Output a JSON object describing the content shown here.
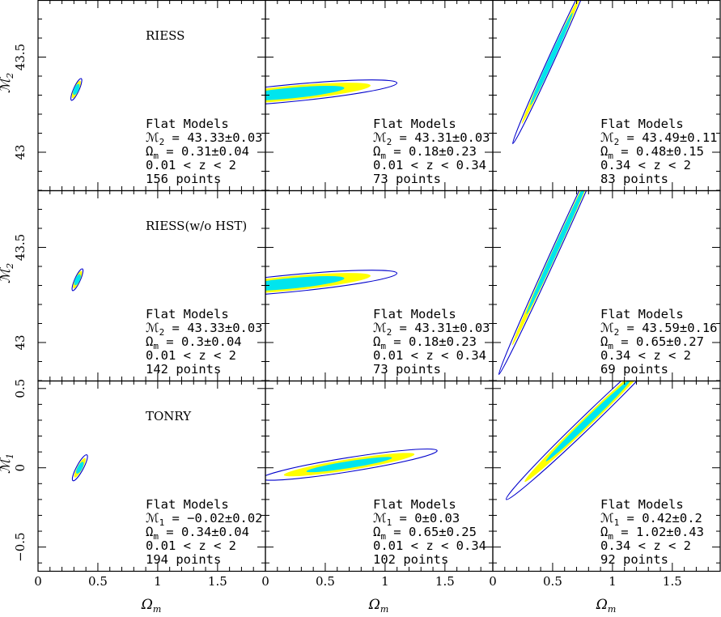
{
  "chart_data": {
    "type": "contour",
    "colors": {
      "inner": "#00e5ee",
      "middle": "#ffff00",
      "outer": "#0000cc"
    },
    "x_axis": {
      "label_main": "Ω",
      "label_sub": "m",
      "lim": [
        0,
        1.9
      ],
      "ticks": [
        0,
        0.5,
        1,
        1.5
      ],
      "tick_labels": [
        "0",
        "0.5",
        "1",
        "1.5"
      ]
    },
    "y_axes": [
      {
        "label_main": "ℳ",
        "label_sub": "2",
        "lim": [
          42.8,
          43.8
        ],
        "ticks": [
          43,
          43.5
        ],
        "tick_labels": [
          "43",
          "43.5"
        ]
      },
      {
        "label_main": "ℳ",
        "label_sub": "2",
        "lim": [
          42.8,
          43.8
        ],
        "ticks": [
          43,
          43.5
        ],
        "tick_labels": [
          "43",
          "43.5"
        ]
      },
      {
        "label_main": "ℳ",
        "label_sub": "1",
        "lim": [
          -0.65,
          0.55
        ],
        "ticks": [
          -0.5,
          0,
          0.5
        ],
        "tick_labels": [
          "−0.5",
          "0",
          "0.5"
        ]
      }
    ],
    "row_labels": [
      "RIESS",
      "RIESS(w/o HST)",
      "TONRY"
    ],
    "panels": [
      {
        "row": 0,
        "col": 0,
        "title": "Flat Models",
        "m_prefix": "ℳ",
        "m_sub": "2",
        "m_rest": " = 43.33±0.03",
        "om_prefix": "Ω",
        "om_sub": "m",
        "om_rest": " = 0.31±0.04",
        "zrange": "0.01 < z < 2",
        "npoints": "156 points",
        "ellipse": {
          "cx": 0.32,
          "cy": 43.33,
          "axes": [
            [
              0.07,
              0.035
            ],
            [
              0.056,
              0.028
            ],
            [
              0.035,
              0.018
            ]
          ],
          "angle_dir": [
            0.1,
            0.14
          ]
        }
      },
      {
        "row": 0,
        "col": 1,
        "title": "Flat Models",
        "m_prefix": "ℳ",
        "m_sub": "2",
        "m_rest": " = 43.31±0.03",
        "om_prefix": "Ω",
        "om_sub": "m",
        "om_rest": " = 0.18±0.23",
        "zrange": "0.01 < z < 0.34",
        "npoints": "73 points",
        "ellipse": {
          "cx": 0.2,
          "cy": 43.31,
          "axes": [
            [
              0.9,
              0.045
            ],
            [
              0.68,
              0.038
            ],
            [
              0.46,
              0.028
            ]
          ],
          "angle_dir": [
            1,
            0.06
          ]
        }
      },
      {
        "row": 0,
        "col": 2,
        "title": "Flat Models",
        "m_prefix": "ℳ",
        "m_sub": "2",
        "m_rest": " = 43.49±0.11",
        "om_prefix": "Ω",
        "om_sub": "m",
        "om_rest": " = 0.48±0.15",
        "zrange": "0.34 < z < 2",
        "npoints": "83 points",
        "ellipse": {
          "cx": 0.49,
          "cy": 43.49,
          "axes": [
            [
              0.55,
              0.04
            ],
            [
              0.42,
              0.03
            ],
            [
              0.3,
              0.02
            ]
          ],
          "angle_dir": [
            0.45,
            0.62
          ]
        }
      },
      {
        "row": 1,
        "col": 0,
        "title": "Flat Models",
        "m_prefix": "ℳ",
        "m_sub": "2",
        "m_rest": " = 43.33±0.03",
        "om_prefix": "Ω",
        "om_sub": "m",
        "om_rest": " = 0.3±0.04",
        "zrange": "0.01 < z < 2",
        "npoints": "142 points",
        "ellipse": {
          "cx": 0.33,
          "cy": 43.33,
          "axes": [
            [
              0.07,
              0.035
            ],
            [
              0.056,
              0.028
            ],
            [
              0.035,
              0.018
            ]
          ],
          "angle_dir": [
            0.1,
            0.14
          ]
        }
      },
      {
        "row": 1,
        "col": 1,
        "title": "Flat Models",
        "m_prefix": "ℳ",
        "m_sub": "2",
        "m_rest": " = 43.31±0.03",
        "om_prefix": "Ω",
        "om_sub": "m",
        "om_rest": " = 0.18±0.23",
        "zrange": "0.01 < z < 0.34",
        "npoints": "73 points",
        "ellipse": {
          "cx": 0.2,
          "cy": 43.31,
          "axes": [
            [
              0.9,
              0.045
            ],
            [
              0.68,
              0.038
            ],
            [
              0.46,
              0.028
            ]
          ],
          "angle_dir": [
            1,
            0.06
          ]
        }
      },
      {
        "row": 1,
        "col": 2,
        "title": "Flat Models",
        "m_prefix": "ℳ",
        "m_sub": "2",
        "m_rest": " = 43.59±0.16",
        "om_prefix": "Ω",
        "om_sub": "m",
        "om_rest": " = 0.65±0.27",
        "zrange": "0.34 < z < 2",
        "npoints": "69 points",
        "ellipse": {
          "cx": 0.55,
          "cy": 43.52,
          "axes": [
            [
              0.85,
              0.045
            ],
            [
              0.66,
              0.035
            ],
            [
              0.46,
              0.025
            ]
          ],
          "angle_dir": [
            0.45,
            0.62
          ]
        }
      },
      {
        "row": 2,
        "col": 0,
        "title": "Flat Models",
        "m_prefix": "ℳ",
        "m_sub": "1",
        "m_rest": " = −0.02±0.02",
        "om_prefix": "Ω",
        "om_sub": "m",
        "om_rest": " = 0.34±0.04",
        "zrange": "0.01 < z < 2",
        "npoints": "194 points",
        "ellipse": {
          "cx": 0.35,
          "cy": 0.0,
          "axes": [
            [
              0.1,
              0.045
            ],
            [
              0.075,
              0.035
            ],
            [
              0.045,
              0.022
            ]
          ],
          "angle_dir": [
            0.1,
            0.14
          ]
        }
      },
      {
        "row": 2,
        "col": 1,
        "title": "Flat Models",
        "m_prefix": "ℳ",
        "m_sub": "1",
        "m_rest": " = 0±0.03",
        "om_prefix": "Ω",
        "om_sub": "m",
        "om_rest": " = 0.65±0.25",
        "zrange": "0.01 < z < 0.34",
        "npoints": "102 points",
        "ellipse": {
          "cx": 0.7,
          "cy": 0.02,
          "axes": [
            [
              0.74,
              0.045
            ],
            [
              0.55,
              0.035
            ],
            [
              0.36,
              0.022
            ]
          ],
          "angle_dir": [
            1,
            0.12
          ]
        }
      },
      {
        "row": 2,
        "col": 2,
        "title": "Flat Models",
        "m_prefix": "ℳ",
        "m_sub": "1",
        "m_rest": " = 0.42±0.2",
        "om_prefix": "Ω",
        "om_sub": "m",
        "om_rest": " = 1.02±0.43",
        "zrange": "0.34 < z < 2",
        "npoints": "92 points",
        "ellipse": {
          "cx": 0.8,
          "cy": 0.3,
          "axes": [
            [
              0.85,
              0.055
            ],
            [
              0.66,
              0.042
            ],
            [
              0.44,
              0.028
            ]
          ],
          "angle_dir": [
            0.55,
            0.4
          ]
        }
      }
    ]
  }
}
